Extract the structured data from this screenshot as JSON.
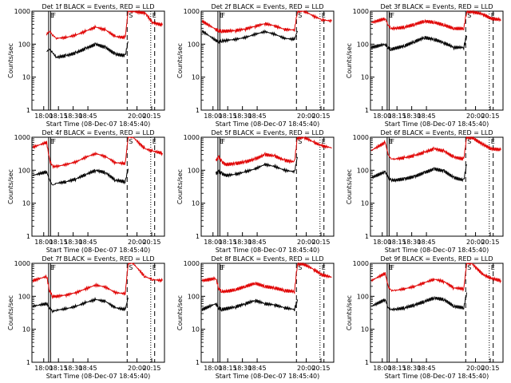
{
  "figure": {
    "background": "#ffffff",
    "axis_color": "#000000",
    "events_color": "#000000",
    "lld_color": "#e00000"
  },
  "chart_data": [
    {
      "type": "line",
      "title": "Det 1f BLACK = Events, RED = LLD",
      "xlabel": "Start Time (08-Dec-07 18:45:40)",
      "ylabel": "Counts/sec",
      "yscale": "log",
      "ylim": [
        1,
        1000
      ],
      "xlim_min": [
        -3,
        -55
      ],
      "xticks": [
        "18:00",
        "18:15",
        "18:30",
        "18:45",
        "20:00",
        "20:15"
      ],
      "markers": [
        {
          "label": "E",
          "x": 2,
          "style": "solid"
        },
        {
          "label": "F",
          "x": 4,
          "style": "solid"
        },
        {
          "label": "S",
          "x": 82,
          "style": "dashed"
        },
        {
          "label": "E",
          "x": 106,
          "style": "dotted"
        },
        {
          "label": "",
          "x": 110,
          "style": "dashed"
        }
      ],
      "series": [
        {
          "name": "Events",
          "color": "#000000",
          "x": [
            0,
            3,
            6,
            10,
            20,
            30,
            40,
            50,
            60,
            70,
            80,
            83
          ],
          "y": [
            60,
            70,
            55,
            40,
            45,
            55,
            75,
            100,
            80,
            50,
            45,
            120
          ]
        },
        {
          "name": "LLD",
          "color": "#e00000",
          "x": [
            0,
            3,
            6,
            10,
            20,
            30,
            40,
            50,
            60,
            70,
            80,
            83,
            88,
            100,
            108,
            118
          ],
          "y": [
            200,
            250,
            190,
            150,
            160,
            190,
            250,
            330,
            270,
            170,
            160,
            1000,
            1000,
            900,
            450,
            380
          ]
        }
      ]
    },
    {
      "type": "line",
      "title": "Det 2f BLACK = Events, RED = LLD",
      "xlabel": "Start Time (08-Dec-07 18:45:40)",
      "ylabel": "Counts/sec",
      "yscale": "log",
      "ylim": [
        1,
        1000
      ],
      "xticks": [
        "18:00",
        "18:15",
        "18:30",
        "18:45",
        "20:00",
        "20:15"
      ],
      "markers": [
        {
          "label": "E",
          "x": 2,
          "style": "solid"
        },
        {
          "label": "F",
          "x": 4,
          "style": "solid"
        },
        {
          "label": "S",
          "x": 82,
          "style": "dashed"
        },
        {
          "label": "E",
          "x": 106,
          "style": "dotted"
        },
        {
          "label": "",
          "x": 110,
          "style": "dashed"
        }
      ],
      "series": [
        {
          "name": "Events",
          "color": "#000000",
          "x": [
            -14,
            0,
            3,
            6,
            10,
            20,
            30,
            40,
            50,
            60,
            70,
            80,
            83
          ],
          "y": [
            250,
            130,
            120,
            125,
            130,
            140,
            160,
            200,
            240,
            200,
            150,
            140,
            250
          ]
        },
        {
          "name": "LLD",
          "color": "#e00000",
          "x": [
            -14,
            0,
            3,
            6,
            10,
            20,
            30,
            40,
            50,
            60,
            70,
            80,
            83,
            90,
            100,
            108,
            118
          ],
          "y": [
            500,
            280,
            260,
            250,
            250,
            260,
            290,
            350,
            420,
            360,
            280,
            270,
            1000,
            1000,
            700,
            550,
            500
          ]
        }
      ]
    },
    {
      "type": "line",
      "title": "Det 3f BLACK = Events, RED = LLD",
      "xlabel": "Start Time (08-Dec-07 18:45:40)",
      "ylabel": "Counts/sec",
      "yscale": "log",
      "ylim": [
        1,
        1000
      ],
      "xticks": [
        "18:00",
        "18:15",
        "18:30",
        "18:45",
        "20:00",
        "20:15"
      ],
      "markers": [
        {
          "label": "E",
          "x": 2,
          "style": "solid"
        },
        {
          "label": "F",
          "x": 4,
          "style": "solid"
        },
        {
          "label": "S",
          "x": 82,
          "style": "dashed"
        },
        {
          "label": "E",
          "x": 106,
          "style": "dotted"
        },
        {
          "label": "",
          "x": 110,
          "style": "dashed"
        }
      ],
      "series": [
        {
          "name": "Events",
          "color": "#000000",
          "x": [
            -14,
            0,
            3,
            6,
            10,
            20,
            30,
            40,
            50,
            60,
            70,
            80,
            83
          ],
          "y": [
            80,
            100,
            80,
            70,
            75,
            90,
            120,
            160,
            140,
            110,
            80,
            80,
            180
          ]
        },
        {
          "name": "LLD",
          "color": "#e00000",
          "x": [
            -14,
            0,
            3,
            6,
            10,
            20,
            30,
            40,
            50,
            60,
            70,
            80,
            83,
            88,
            100,
            108,
            118
          ],
          "y": [
            450,
            600,
            380,
            300,
            300,
            330,
            400,
            500,
            460,
            380,
            300,
            300,
            1000,
            1000,
            800,
            600,
            550
          ]
        }
      ]
    },
    {
      "type": "line",
      "title": "Det 4f BLACK = Events, RED = LLD",
      "xlabel": "Start Time (08-Dec-07 18:45:40)",
      "ylabel": "Counts/sec",
      "yscale": "log",
      "ylim": [
        1,
        1000
      ],
      "xticks": [
        "18:00",
        "18:15",
        "18:30",
        "18:45",
        "20:00",
        "20:15"
      ],
      "markers": [
        {
          "label": "E",
          "x": 2,
          "style": "solid"
        },
        {
          "label": "F",
          "x": 4,
          "style": "solid"
        },
        {
          "label": "S",
          "x": 82,
          "style": "dashed"
        },
        {
          "label": "E",
          "x": 106,
          "style": "dotted"
        },
        {
          "label": "",
          "x": 110,
          "style": "dashed"
        }
      ],
      "series": [
        {
          "name": "Events",
          "color": "#000000",
          "x": [
            -14,
            0,
            3,
            6,
            10,
            20,
            30,
            40,
            50,
            60,
            70,
            80,
            83
          ],
          "y": [
            70,
            90,
            50,
            35,
            40,
            45,
            55,
            75,
            100,
            85,
            50,
            45,
            110
          ]
        },
        {
          "name": "LLD",
          "color": "#e00000",
          "x": [
            -14,
            0,
            3,
            6,
            10,
            20,
            30,
            40,
            50,
            60,
            70,
            80,
            83,
            88,
            100,
            108,
            118
          ],
          "y": [
            500,
            700,
            200,
            130,
            130,
            150,
            180,
            250,
            320,
            260,
            170,
            160,
            1000,
            1000,
            450,
            380,
            330
          ]
        }
      ]
    },
    {
      "type": "line",
      "title": "Det 5f BLACK = Events, RED = LLD",
      "xlabel": "Start Time (08-Dec-07 18:45:40)",
      "ylabel": "Counts/sec",
      "yscale": "log",
      "ylim": [
        1,
        1000
      ],
      "xticks": [
        "18:00",
        "18:15",
        "18:30",
        "18:45",
        "20:00",
        "20:15"
      ],
      "markers": [
        {
          "label": "E",
          "x": 2,
          "style": "solid"
        },
        {
          "label": "F",
          "x": 4,
          "style": "solid"
        },
        {
          "label": "S",
          "x": 82,
          "style": "dashed"
        },
        {
          "label": "E",
          "x": 106,
          "style": "dotted"
        },
        {
          "label": "",
          "x": 110,
          "style": "dashed"
        }
      ],
      "series": [
        {
          "name": "Events",
          "color": "#000000",
          "x": [
            0,
            3,
            6,
            10,
            20,
            30,
            40,
            50,
            60,
            70,
            80,
            83
          ],
          "y": [
            80,
            90,
            80,
            70,
            75,
            90,
            110,
            150,
            130,
            100,
            90,
            250
          ]
        },
        {
          "name": "LLD",
          "color": "#e00000",
          "x": [
            0,
            3,
            6,
            10,
            20,
            30,
            40,
            50,
            60,
            70,
            80,
            83,
            90,
            100,
            108,
            118
          ],
          "y": [
            200,
            250,
            180,
            150,
            160,
            180,
            220,
            300,
            270,
            200,
            180,
            1000,
            1000,
            700,
            550,
            480
          ]
        }
      ]
    },
    {
      "type": "line",
      "title": "Det 6f BLACK = Events, RED = LLD",
      "xlabel": "Start Time (08-Dec-07 18:45:40)",
      "ylabel": "Counts/sec",
      "yscale": "log",
      "ylim": [
        1,
        1000
      ],
      "xticks": [
        "18:00",
        "18:15",
        "18:30",
        "18:45",
        "20:00",
        "20:15"
      ],
      "markers": [
        {
          "label": "E",
          "x": 2,
          "style": "solid"
        },
        {
          "label": "F",
          "x": 4,
          "style": "solid"
        },
        {
          "label": "S",
          "x": 82,
          "style": "dashed"
        },
        {
          "label": "E",
          "x": 106,
          "style": "dotted"
        },
        {
          "label": "",
          "x": 110,
          "style": "dashed"
        }
      ],
      "series": [
        {
          "name": "Events",
          "color": "#000000",
          "x": [
            -14,
            0,
            3,
            6,
            10,
            20,
            30,
            40,
            50,
            60,
            70,
            80,
            83
          ],
          "y": [
            60,
            90,
            60,
            50,
            50,
            55,
            65,
            85,
            110,
            95,
            60,
            50,
            150
          ]
        },
        {
          "name": "LLD",
          "color": "#e00000",
          "x": [
            -14,
            0,
            3,
            6,
            10,
            20,
            30,
            40,
            50,
            60,
            70,
            80,
            83,
            88,
            100,
            108,
            118
          ],
          "y": [
            400,
            700,
            300,
            220,
            220,
            240,
            280,
            350,
            450,
            380,
            250,
            220,
            1000,
            1000,
            600,
            450,
            420
          ]
        }
      ]
    },
    {
      "type": "line",
      "title": "Det 7f BLACK = Events, RED = LLD",
      "xlabel": "Start Time (08-Dec-07 18:45:40)",
      "ylabel": "Counts/sec",
      "yscale": "log",
      "ylim": [
        1,
        1000
      ],
      "xticks": [
        "18:00",
        "18:15",
        "18:30",
        "18:45",
        "20:00",
        "20:15"
      ],
      "markers": [
        {
          "label": "E",
          "x": 2,
          "style": "solid"
        },
        {
          "label": "F",
          "x": 4,
          "style": "solid"
        },
        {
          "label": "S",
          "x": 82,
          "style": "dashed"
        },
        {
          "label": "E",
          "x": 106,
          "style": "dotted"
        },
        {
          "label": "",
          "x": 110,
          "style": "dashed"
        }
      ],
      "series": [
        {
          "name": "Events",
          "color": "#000000",
          "x": [
            -14,
            0,
            3,
            6,
            10,
            20,
            30,
            40,
            50,
            60,
            70,
            80,
            83
          ],
          "y": [
            50,
            60,
            45,
            35,
            38,
            42,
            50,
            65,
            80,
            70,
            45,
            40,
            90
          ]
        },
        {
          "name": "LLD",
          "color": "#e00000",
          "x": [
            -14,
            0,
            3,
            6,
            10,
            20,
            30,
            40,
            50,
            60,
            70,
            80,
            83,
            88,
            100,
            108,
            118
          ],
          "y": [
            300,
            400,
            150,
            100,
            100,
            110,
            130,
            170,
            220,
            190,
            130,
            120,
            1000,
            1000,
            400,
            320,
            300
          ]
        }
      ]
    },
    {
      "type": "line",
      "title": "Det 8f BLACK = Events, RED = LLD",
      "xlabel": "Start Time (08-Dec-07 18:45:40)",
      "ylabel": "Counts/sec",
      "yscale": "log",
      "ylim": [
        1,
        1000
      ],
      "xticks": [
        "18:00",
        "18:15",
        "18:30",
        "18:45",
        "20:00",
        "20:15"
      ],
      "markers": [
        {
          "label": "E",
          "x": 2,
          "style": "solid"
        },
        {
          "label": "F",
          "x": 4,
          "style": "solid"
        },
        {
          "label": "S",
          "x": 82,
          "style": "dashed"
        },
        {
          "label": "E",
          "x": 106,
          "style": "dotted"
        },
        {
          "label": "",
          "x": 110,
          "style": "dashed"
        }
      ],
      "series": [
        {
          "name": "Events",
          "color": "#000000",
          "x": [
            -14,
            0,
            3,
            6,
            10,
            20,
            30,
            40,
            50,
            60,
            70,
            80,
            83
          ],
          "y": [
            40,
            60,
            45,
            40,
            42,
            48,
            60,
            75,
            60,
            55,
            45,
            40,
            80
          ]
        },
        {
          "name": "LLD",
          "color": "#e00000",
          "x": [
            -14,
            0,
            3,
            6,
            10,
            20,
            30,
            40,
            50,
            60,
            70,
            80,
            83,
            88,
            100,
            108,
            118
          ],
          "y": [
            300,
            350,
            170,
            140,
            140,
            160,
            200,
            250,
            200,
            180,
            150,
            140,
            1000,
            1000,
            650,
            450,
            380
          ]
        }
      ]
    },
    {
      "type": "line",
      "title": "Det 9f BLACK = Events, RED = LLD",
      "xlabel": "Start Time (08-Dec-07 18:45:40)",
      "ylabel": "Counts/sec",
      "yscale": "log",
      "ylim": [
        1,
        1000
      ],
      "xticks": [
        "18:00",
        "18:15",
        "18:30",
        "18:45",
        "20:00",
        "20:15"
      ],
      "markers": [
        {
          "label": "E",
          "x": 2,
          "style": "solid"
        },
        {
          "label": "F",
          "x": 4,
          "style": "solid"
        },
        {
          "label": "S",
          "x": 82,
          "style": "dashed"
        },
        {
          "label": "E",
          "x": 106,
          "style": "dotted"
        },
        {
          "label": "",
          "x": 110,
          "style": "dashed"
        }
      ],
      "series": [
        {
          "name": "Events",
          "color": "#000000",
          "x": [
            -14,
            0,
            3,
            6,
            10,
            20,
            30,
            40,
            50,
            60,
            70,
            80,
            83
          ],
          "y": [
            50,
            80,
            45,
            40,
            40,
            45,
            55,
            70,
            90,
            80,
            50,
            45,
            130
          ]
        },
        {
          "name": "LLD",
          "color": "#e00000",
          "x": [
            -14,
            0,
            3,
            6,
            10,
            20,
            30,
            40,
            50,
            60,
            70,
            80,
            83,
            88,
            100,
            108,
            118
          ],
          "y": [
            300,
            500,
            200,
            150,
            150,
            170,
            200,
            260,
            330,
            280,
            180,
            170,
            1000,
            1000,
            450,
            350,
            300
          ]
        }
      ]
    }
  ]
}
